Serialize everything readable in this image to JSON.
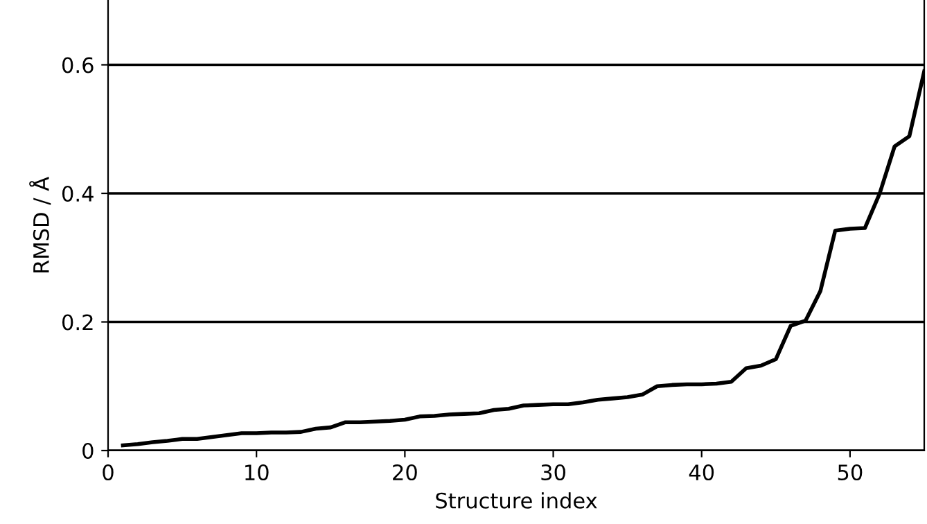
{
  "chart_data": {
    "type": "line",
    "xlabel": "Structure index",
    "ylabel": "RMSD / Å",
    "x": [
      1,
      2,
      3,
      4,
      5,
      6,
      7,
      8,
      9,
      10,
      11,
      12,
      13,
      14,
      15,
      16,
      17,
      18,
      19,
      20,
      21,
      22,
      23,
      24,
      25,
      26,
      27,
      28,
      29,
      30,
      31,
      32,
      33,
      34,
      35,
      36,
      37,
      38,
      39,
      40,
      41,
      42,
      43,
      44,
      45,
      46,
      47,
      48,
      49,
      50,
      51,
      52,
      53,
      54,
      55
    ],
    "series": [
      {
        "color": "#000000",
        "values": [
          0.008,
          0.01,
          0.013,
          0.015,
          0.018,
          0.018,
          0.021,
          0.024,
          0.027,
          0.027,
          0.028,
          0.028,
          0.029,
          0.034,
          0.036,
          0.044,
          0.044,
          0.045,
          0.046,
          0.048,
          0.053,
          0.054,
          0.056,
          0.057,
          0.058,
          0.063,
          0.065,
          0.07,
          0.071,
          0.072,
          0.072,
          0.075,
          0.079,
          0.081,
          0.083,
          0.087,
          0.1,
          0.102,
          0.103,
          0.103,
          0.104,
          0.107,
          0.128,
          0.132,
          0.142,
          0.194,
          0.202,
          0.248,
          0.342,
          0.345,
          0.346,
          0.4,
          0.473,
          0.489,
          0.59
        ]
      }
    ],
    "xlim": [
      0,
      55
    ],
    "xticks": [
      0,
      10,
      20,
      30,
      40,
      50
    ],
    "ylim": [
      0,
      0.7
    ],
    "yticks": [
      0,
      0.2,
      0.4,
      0.6
    ],
    "grid": "y",
    "marker": "none",
    "line_style": "solid"
  }
}
